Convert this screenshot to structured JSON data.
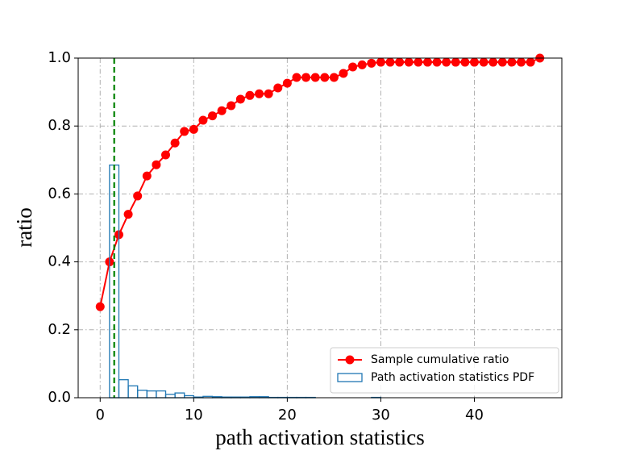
{
  "chart_data": {
    "type": "line",
    "xlabel": "path activation statistics",
    "ylabel": "ratio",
    "xlim": [
      -2.35,
      49.35
    ],
    "xticks": [
      0,
      10,
      20,
      30,
      40
    ],
    "ylim": [
      0,
      1
    ],
    "yticks": [
      {
        "value": 0,
        "label": "0.0"
      },
      0.2,
      0.4,
      0.6,
      0.8,
      {
        "value": 1,
        "label": "1.0"
      }
    ],
    "grid": true,
    "legend": "lower right",
    "vline": {
      "x": 1.5,
      "color": "#008000"
    },
    "series": [
      {
        "name": "Sample cumulative ratio",
        "type": "line",
        "color": "#ff0000",
        "x": [
          0,
          1,
          2,
          3,
          4,
          5,
          6,
          7,
          8,
          9,
          10,
          11,
          12,
          13,
          14,
          15,
          16,
          17,
          18,
          19,
          20,
          21,
          22,
          23,
          24,
          25,
          26,
          27,
          28,
          29,
          30,
          31,
          32,
          33,
          34,
          35,
          36,
          37,
          38,
          39,
          40,
          41,
          42,
          43,
          44,
          45,
          46,
          47
        ],
        "values": [
          0.268,
          0.4,
          0.48,
          0.54,
          0.594,
          0.653,
          0.686,
          0.715,
          0.75,
          0.784,
          0.79,
          0.817,
          0.83,
          0.845,
          0.86,
          0.879,
          0.89,
          0.895,
          0.895,
          0.912,
          0.926,
          0.943,
          0.943,
          0.943,
          0.943,
          0.943,
          0.955,
          0.974,
          0.98,
          0.985,
          0.988,
          0.988,
          0.988,
          0.988,
          0.988,
          0.988,
          0.988,
          0.988,
          0.988,
          0.988,
          0.988,
          0.988,
          0.988,
          0.988,
          0.988,
          0.988,
          0.988,
          1.0
        ]
      },
      {
        "name": "Path activation statistics PDF",
        "type": "histogram",
        "color": "#1f77b4",
        "bins": [
          1,
          2,
          3,
          4,
          5,
          6,
          7,
          8,
          9,
          10,
          11,
          12,
          13,
          14,
          15,
          16,
          17,
          18,
          19,
          20,
          21,
          22,
          23,
          24,
          25,
          26,
          27,
          28,
          29,
          30,
          31,
          32,
          33,
          34,
          35,
          36,
          37,
          38,
          39,
          40,
          41,
          42,
          43,
          44,
          45,
          46,
          47,
          48
        ],
        "values": [
          0.685,
          0.053,
          0.035,
          0.022,
          0.02,
          0.02,
          0.01,
          0.014,
          0.006,
          0.002,
          0.004,
          0.003,
          0.002,
          0.002,
          0.002,
          0.003,
          0.003,
          0.001,
          0.001,
          0.001,
          0.001,
          0.001,
          0,
          0,
          0,
          0,
          0,
          0,
          0.001,
          0,
          0,
          0,
          0,
          0,
          0,
          0,
          0,
          0,
          0,
          0,
          0,
          0,
          0,
          0,
          0,
          0,
          0
        ]
      }
    ]
  }
}
